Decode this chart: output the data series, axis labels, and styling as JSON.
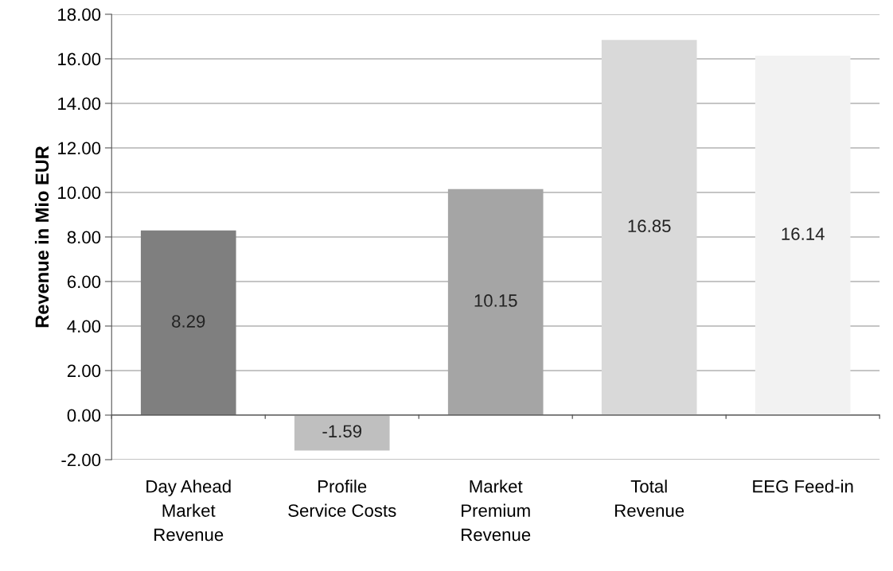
{
  "chart_data": {
    "type": "bar",
    "ylabel": "Revenue in Mio EUR",
    "categories": [
      "Day Ahead\nMarket\nRevenue",
      "Profile\nService Costs",
      "Market\nPremium\nRevenue",
      "Total\nRevenue",
      "EEG Feed-in"
    ],
    "values": [
      8.29,
      -1.59,
      10.15,
      16.85,
      16.14
    ],
    "colors": [
      "#7f7f7f",
      "#bfbfbf",
      "#a5a5a5",
      "#d9d9d9",
      "#f2f2f2"
    ],
    "data_labels": true,
    "ylim": [
      -2,
      18
    ],
    "yticks": [
      {
        "value": -2,
        "label": "-2.00"
      },
      {
        "value": 0,
        "label": "0.00"
      },
      {
        "value": 2,
        "label": "2.00"
      },
      {
        "value": 4,
        "label": "4.00"
      },
      {
        "value": 6,
        "label": "6.00"
      },
      {
        "value": 8,
        "label": "8.00"
      },
      {
        "value": 10,
        "label": "10.00"
      },
      {
        "value": 12,
        "label": "12.00"
      },
      {
        "value": 14,
        "label": "14.00"
      },
      {
        "value": 16,
        "label": "16.00"
      },
      {
        "value": 18,
        "label": "18.00"
      }
    ],
    "grid": "y"
  }
}
